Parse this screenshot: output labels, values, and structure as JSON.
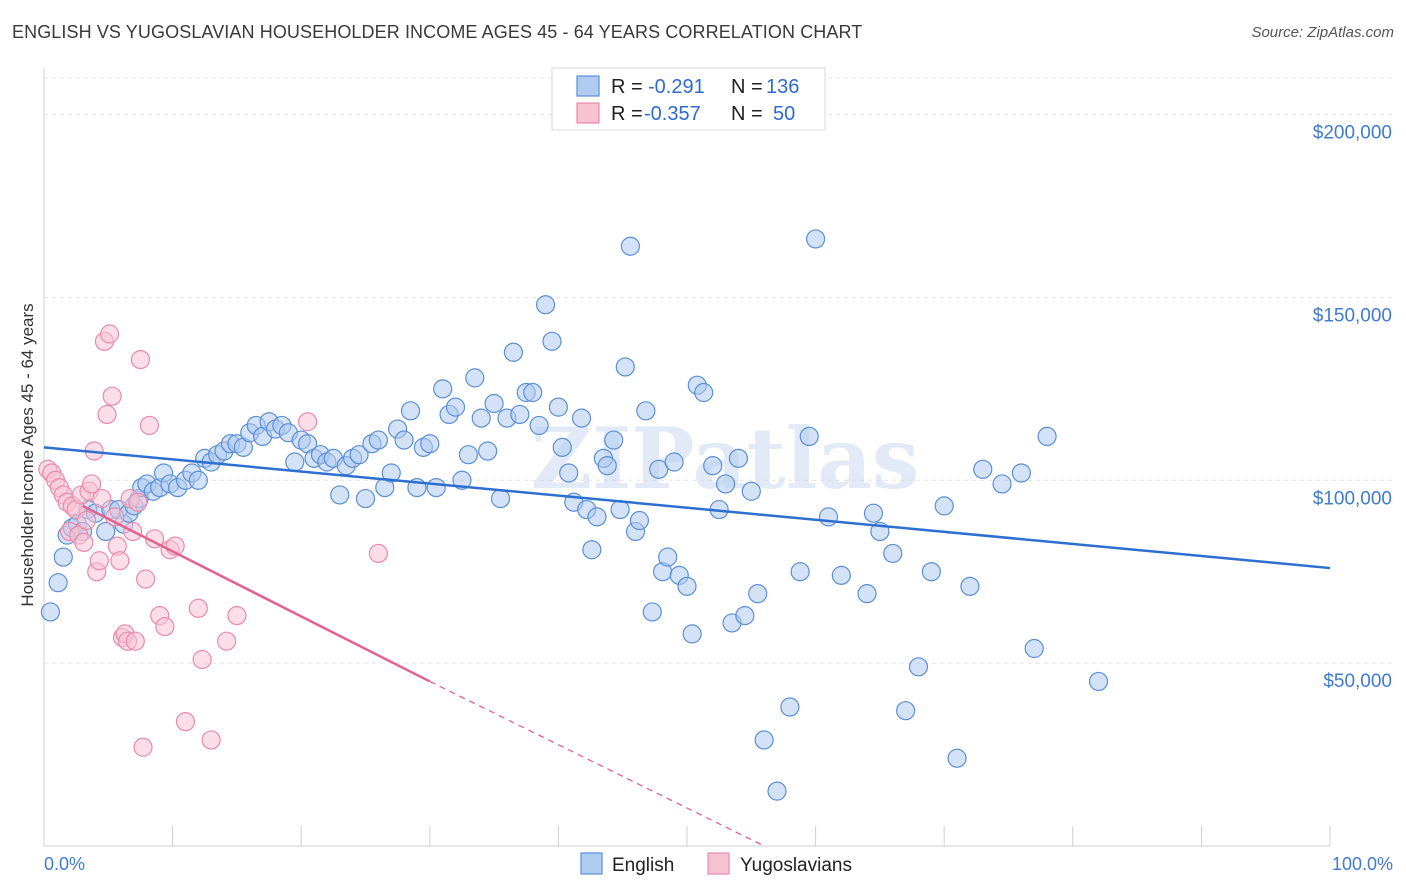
{
  "header": {
    "title": "ENGLISH VS YUGOSLAVIAN HOUSEHOLDER INCOME AGES 45 - 64 YEARS CORRELATION CHART",
    "source": "Source: ZipAtlas.com"
  },
  "watermark": "ZIPatlas",
  "stats_legend": {
    "rows": [
      {
        "r_label": "R =",
        "r_value": "-0.291",
        "n_label": "N =",
        "n_value": "136",
        "color": "#6fa8dc"
      },
      {
        "r_label": "R =",
        "r_value": "-0.357",
        "n_label": "N =",
        "n_value": "50",
        "color": "#f4a7c0"
      }
    ]
  },
  "colors": {
    "english_fill": "#aecbf0",
    "english_stroke": "#5b8fd6",
    "english_line": "#2d6fd0",
    "yugo_fill": "#f7c3d3",
    "yugo_stroke": "#e98aab",
    "yugo_line": "#e5618f",
    "axis_text": "#3f7bd1",
    "value_text": "#2f6bd0"
  },
  "chart_data": {
    "type": "scatter",
    "title": "ENGLISH VS YUGOSLAVIAN HOUSEHOLDER INCOME AGES 45 - 64 YEARS CORRELATION CHART",
    "xlabel": "",
    "ylabel": "Householder Income Ages 45 - 64 years",
    "xlim": [
      0,
      100
    ],
    "ylim": [
      0,
      210000
    ],
    "x_tick_labels": [
      "0.0%",
      "100.0%"
    ],
    "y_ticks": [
      50000,
      100000,
      150000,
      200000
    ],
    "y_tick_labels": [
      "$50,000",
      "$100,000",
      "$150,000",
      "$200,000"
    ],
    "grid": true,
    "legend_position": "bottom-center",
    "series": [
      {
        "name": "English",
        "points": [
          [
            0.5,
            64000
          ],
          [
            1.1,
            72000
          ],
          [
            1.5,
            79000
          ],
          [
            1.8,
            85000
          ],
          [
            2.2,
            87000
          ],
          [
            2.6,
            88000
          ],
          [
            3.0,
            86000
          ],
          [
            3.4,
            92000
          ],
          [
            4.0,
            91000
          ],
          [
            4.8,
            86000
          ],
          [
            5.2,
            92000
          ],
          [
            5.8,
            92000
          ],
          [
            6.2,
            88000
          ],
          [
            6.6,
            91000
          ],
          [
            7.0,
            93000
          ],
          [
            7.4,
            95000
          ],
          [
            7.6,
            98000
          ],
          [
            8.0,
            99000
          ],
          [
            8.5,
            97000
          ],
          [
            9.0,
            98000
          ],
          [
            9.3,
            102000
          ],
          [
            9.8,
            99000
          ],
          [
            10.4,
            98000
          ],
          [
            11.0,
            100000
          ],
          [
            11.5,
            102000
          ],
          [
            12.0,
            100000
          ],
          [
            12.5,
            106000
          ],
          [
            13.0,
            105000
          ],
          [
            13.5,
            107000
          ],
          [
            14.0,
            108000
          ],
          [
            14.5,
            110000
          ],
          [
            15.0,
            110000
          ],
          [
            15.5,
            109000
          ],
          [
            16.0,
            113000
          ],
          [
            16.5,
            115000
          ],
          [
            17.0,
            112000
          ],
          [
            17.5,
            116000
          ],
          [
            18.0,
            114000
          ],
          [
            18.5,
            115000
          ],
          [
            19.0,
            113000
          ],
          [
            19.5,
            105000
          ],
          [
            20.0,
            111000
          ],
          [
            20.5,
            110000
          ],
          [
            21.0,
            106000
          ],
          [
            21.5,
            107000
          ],
          [
            22.0,
            105000
          ],
          [
            22.5,
            106000
          ],
          [
            23.0,
            96000
          ],
          [
            23.5,
            104000
          ],
          [
            24.0,
            106000
          ],
          [
            24.5,
            107000
          ],
          [
            25.0,
            95000
          ],
          [
            25.5,
            110000
          ],
          [
            26.0,
            111000
          ],
          [
            26.5,
            98000
          ],
          [
            27.0,
            102000
          ],
          [
            27.5,
            114000
          ],
          [
            28.0,
            111000
          ],
          [
            28.5,
            119000
          ],
          [
            29.0,
            98000
          ],
          [
            29.5,
            109000
          ],
          [
            30.0,
            110000
          ],
          [
            30.5,
            98000
          ],
          [
            31.0,
            125000
          ],
          [
            31.5,
            118000
          ],
          [
            32.0,
            120000
          ],
          [
            32.5,
            100000
          ],
          [
            33.0,
            107000
          ],
          [
            33.5,
            128000
          ],
          [
            34.0,
            117000
          ],
          [
            34.5,
            108000
          ],
          [
            35.0,
            121000
          ],
          [
            35.5,
            95000
          ],
          [
            36.0,
            117000
          ],
          [
            36.5,
            135000
          ],
          [
            37.0,
            118000
          ],
          [
            37.5,
            124000
          ],
          [
            38.0,
            124000
          ],
          [
            38.5,
            115000
          ],
          [
            39.0,
            148000
          ],
          [
            39.5,
            138000
          ],
          [
            40.0,
            120000
          ],
          [
            40.3,
            109000
          ],
          [
            40.8,
            102000
          ],
          [
            41.2,
            94000
          ],
          [
            41.8,
            117000
          ],
          [
            42.2,
            92000
          ],
          [
            42.6,
            81000
          ],
          [
            43.0,
            90000
          ],
          [
            43.5,
            106000
          ],
          [
            43.8,
            104000
          ],
          [
            44.3,
            111000
          ],
          [
            44.8,
            92000
          ],
          [
            45.2,
            131000
          ],
          [
            45.6,
            164000
          ],
          [
            46.0,
            86000
          ],
          [
            46.3,
            89000
          ],
          [
            46.8,
            119000
          ],
          [
            47.3,
            64000
          ],
          [
            47.8,
            103000
          ],
          [
            48.1,
            75000
          ],
          [
            48.5,
            79000
          ],
          [
            49.0,
            105000
          ],
          [
            49.4,
            74000
          ],
          [
            50.0,
            71000
          ],
          [
            50.4,
            58000
          ],
          [
            50.8,
            126000
          ],
          [
            51.3,
            124000
          ],
          [
            52.0,
            104000
          ],
          [
            52.5,
            92000
          ],
          [
            53.0,
            99000
          ],
          [
            53.5,
            61000
          ],
          [
            54.0,
            106000
          ],
          [
            54.5,
            63000
          ],
          [
            55.0,
            97000
          ],
          [
            55.5,
            69000
          ],
          [
            56.0,
            29000
          ],
          [
            57.0,
            15000
          ],
          [
            58.0,
            38000
          ],
          [
            58.8,
            75000
          ],
          [
            59.5,
            112000
          ],
          [
            60.0,
            166000
          ],
          [
            61.0,
            90000
          ],
          [
            62.0,
            74000
          ],
          [
            64.0,
            69000
          ],
          [
            64.5,
            91000
          ],
          [
            65.0,
            86000
          ],
          [
            66.0,
            80000
          ],
          [
            67.0,
            37000
          ],
          [
            68.0,
            49000
          ],
          [
            69.0,
            75000
          ],
          [
            70.0,
            93000
          ],
          [
            71.0,
            24000
          ],
          [
            72.0,
            71000
          ],
          [
            73.0,
            103000
          ],
          [
            74.5,
            99000
          ],
          [
            76.0,
            102000
          ],
          [
            78.0,
            112000
          ],
          [
            77.0,
            54000
          ],
          [
            82.0,
            45000
          ]
        ]
      },
      {
        "name": "Yugoslavians",
        "points": [
          [
            0.3,
            103000
          ],
          [
            0.6,
            102000
          ],
          [
            0.9,
            100000
          ],
          [
            1.2,
            98000
          ],
          [
            1.5,
            96000
          ],
          [
            1.8,
            94000
          ],
          [
            2.0,
            86000
          ],
          [
            2.2,
            93000
          ],
          [
            2.5,
            92000
          ],
          [
            2.7,
            85000
          ],
          [
            2.9,
            96000
          ],
          [
            3.1,
            83000
          ],
          [
            3.3,
            89000
          ],
          [
            3.5,
            97000
          ],
          [
            3.7,
            99000
          ],
          [
            3.9,
            108000
          ],
          [
            4.1,
            75000
          ],
          [
            4.3,
            78000
          ],
          [
            4.5,
            95000
          ],
          [
            4.7,
            138000
          ],
          [
            4.9,
            118000
          ],
          [
            5.1,
            140000
          ],
          [
            5.3,
            123000
          ],
          [
            5.5,
            90000
          ],
          [
            5.7,
            82000
          ],
          [
            5.9,
            78000
          ],
          [
            6.1,
            57000
          ],
          [
            6.3,
            58000
          ],
          [
            6.5,
            56000
          ],
          [
            6.7,
            95000
          ],
          [
            6.9,
            86000
          ],
          [
            7.1,
            56000
          ],
          [
            7.3,
            94000
          ],
          [
            7.5,
            133000
          ],
          [
            7.7,
            27000
          ],
          [
            7.9,
            73000
          ],
          [
            8.2,
            115000
          ],
          [
            8.6,
            84000
          ],
          [
            9.0,
            63000
          ],
          [
            9.4,
            60000
          ],
          [
            9.8,
            81000
          ],
          [
            10.2,
            82000
          ],
          [
            11.0,
            34000
          ],
          [
            12.0,
            65000
          ],
          [
            12.3,
            51000
          ],
          [
            13.0,
            29000
          ],
          [
            14.2,
            56000
          ],
          [
            15.0,
            63000
          ],
          [
            20.5,
            116000
          ],
          [
            26.0,
            80000
          ]
        ]
      }
    ],
    "trend_lines": [
      {
        "name": "English",
        "x": [
          0,
          100
        ],
        "y": [
          109000,
          76000
        ]
      },
      {
        "name": "Yugoslavians",
        "x": [
          3,
          30
        ],
        "y": [
          93000,
          45000
        ],
        "dashed_extension": {
          "x": [
            30,
            56
          ],
          "y": [
            45000,
            0
          ]
        }
      }
    ]
  }
}
